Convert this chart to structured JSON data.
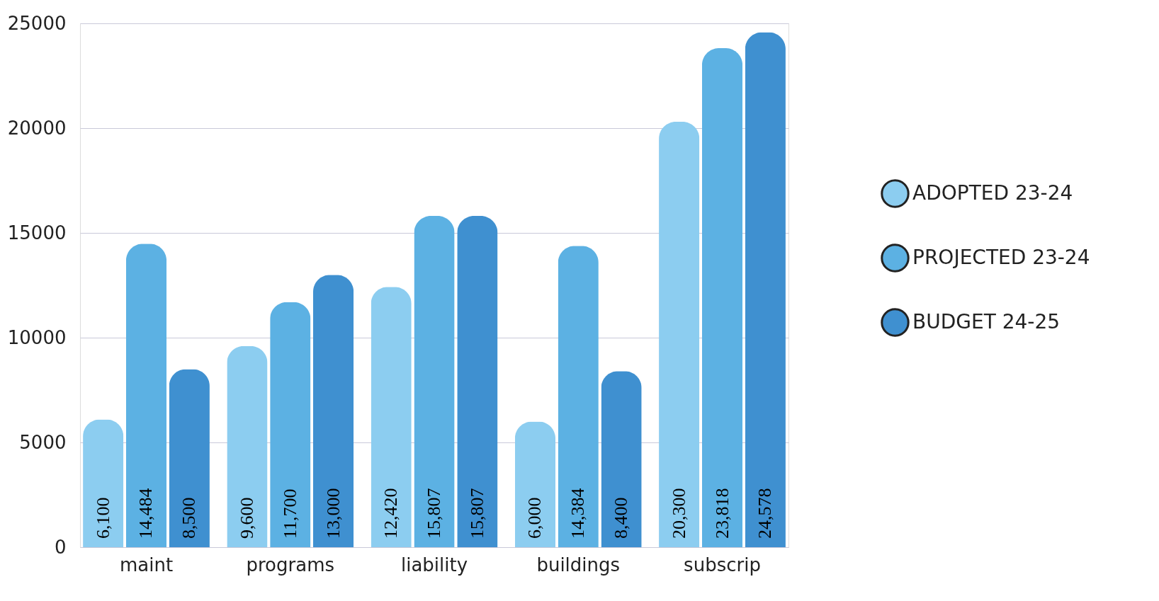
{
  "chart_data": {
    "type": "bar",
    "categories": [
      "maint",
      "programs",
      "liability",
      "buildings",
      "subscrip"
    ],
    "series": [
      {
        "name": "ADOPTED 23-24",
        "color": "#8ccdf0",
        "values": [
          6100,
          9600,
          12420,
          6000,
          20300
        ],
        "value_labels": [
          "6,100",
          "9,600",
          "12,420",
          "6,000",
          "20,300"
        ]
      },
      {
        "name": "PROJECTED 23-24",
        "color": "#5cb1e3",
        "values": [
          14484,
          11700,
          15807,
          14384,
          23818
        ],
        "value_labels": [
          "14,484",
          "11,700",
          "15,807",
          "14,384",
          "23,818"
        ]
      },
      {
        "name": "BUDGET 24-25",
        "color": "#3f90d0",
        "values": [
          8500,
          13000,
          15807,
          8400,
          24578
        ],
        "value_labels": [
          "8,500",
          "13,000",
          "15,807",
          "8,400",
          "24,578"
        ]
      }
    ],
    "ylim": [
      0,
      25000
    ],
    "yticks": [
      0,
      5000,
      10000,
      15000,
      20000,
      25000
    ],
    "grid": "y",
    "legend": "right"
  }
}
